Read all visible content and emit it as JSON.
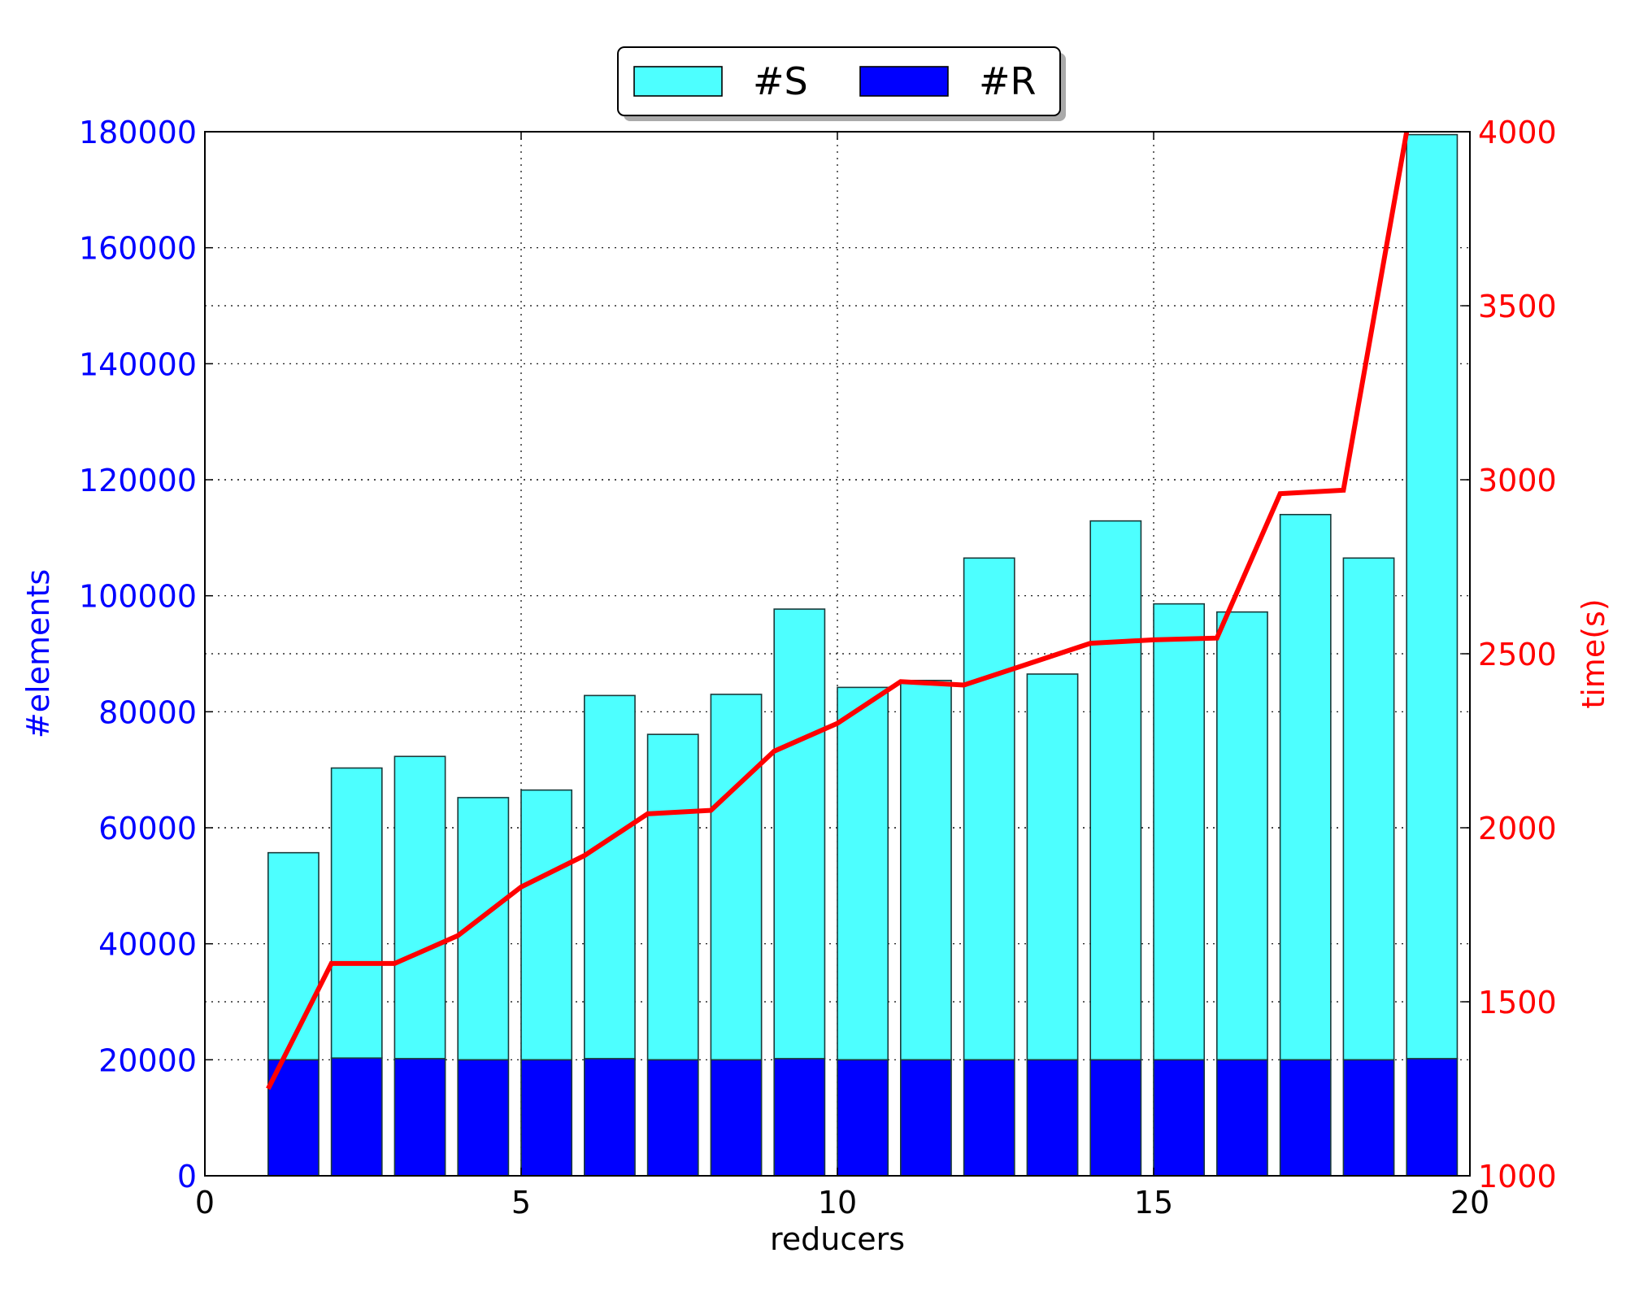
{
  "chart_data": {
    "type": "bar",
    "stacked": true,
    "x": [
      1,
      2,
      3,
      4,
      5,
      6,
      7,
      8,
      9,
      10,
      11,
      12,
      13,
      14,
      15,
      16,
      17,
      18,
      19
    ],
    "series": [
      {
        "name": "#R",
        "color": "#0000ff",
        "axis": "left",
        "values": [
          20000,
          20300,
          20200,
          20000,
          20000,
          20200,
          20000,
          20000,
          20200,
          20000,
          20000,
          20000,
          20000,
          20000,
          20000,
          20000,
          20000,
          20000,
          20200
        ]
      },
      {
        "name": "#S",
        "color": "#4dffff",
        "axis": "left",
        "values": [
          35700,
          50000,
          52100,
          45200,
          46500,
          62600,
          56100,
          63000,
          77500,
          64200,
          65400,
          86500,
          66500,
          92900,
          78600,
          77200,
          94000,
          86500,
          159300
        ]
      },
      {
        "name": "",
        "type": "line",
        "color": "#ff0000",
        "axis": "right",
        "values": [
          1250,
          1610,
          1610,
          1690,
          1830,
          1920,
          2040,
          2050,
          2220,
          2300,
          2420,
          2410,
          2470,
          2530,
          2540,
          2545,
          2960,
          2970,
          4000
        ]
      }
    ],
    "xlabel": "reducers",
    "ylabel": "#elements",
    "y2label": "time(s)",
    "xlim": [
      0,
      20
    ],
    "ylim": [
      0,
      180000
    ],
    "y2lim": [
      1000,
      4000
    ],
    "xticks": [
      "0",
      "5",
      "10",
      "15",
      "20"
    ],
    "yticks": [
      "0",
      "20000",
      "40000",
      "60000",
      "80000",
      "100000",
      "120000",
      "140000",
      "160000",
      "180000"
    ],
    "y2ticks": [
      "1000",
      "1500",
      "2000",
      "2500",
      "3000",
      "3500",
      "4000"
    ],
    "grid": true,
    "legend_position": "top-center",
    "left_axis_color": "#0000ff",
    "right_axis_color": "#ff0000"
  }
}
